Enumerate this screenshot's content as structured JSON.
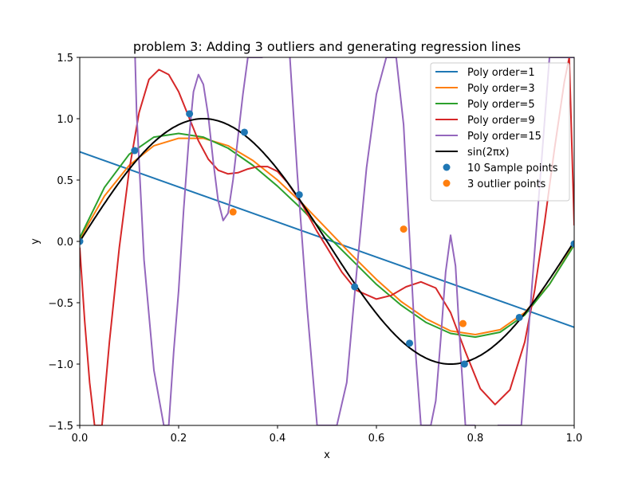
{
  "chart_data": {
    "type": "line",
    "title": "problem 3: Adding 3 outliers and generating regression lines",
    "xlabel": "x",
    "ylabel": "y",
    "xlim": [
      0,
      1
    ],
    "ylim": [
      -1.5,
      1.5
    ],
    "x_ticks": [
      "0.0",
      "0.2",
      "0.4",
      "0.6",
      "0.8",
      "1.0"
    ],
    "y_ticks": [
      "−1.5",
      "−1.0",
      "−0.5",
      "0.0",
      "0.5",
      "1.0",
      "1.5"
    ],
    "grid": false,
    "legend_position": "top-right",
    "series": [
      {
        "name": "Poly order=1",
        "color": "#1f77b4",
        "x": [
          0,
          1
        ],
        "y": [
          0.73,
          -0.7
        ]
      },
      {
        "name": "Poly order=3",
        "color": "#ff7f0e",
        "x": [
          0,
          0.05,
          0.1,
          0.15,
          0.2,
          0.25,
          0.3,
          0.35,
          0.4,
          0.45,
          0.5,
          0.55,
          0.6,
          0.65,
          0.7,
          0.75,
          0.8,
          0.85,
          0.9,
          0.95,
          1.0
        ],
        "y": [
          0.02,
          0.37,
          0.62,
          0.78,
          0.84,
          0.84,
          0.78,
          0.66,
          0.5,
          0.31,
          0.1,
          -0.11,
          -0.31,
          -0.49,
          -0.63,
          -0.73,
          -0.76,
          -0.72,
          -0.58,
          -0.35,
          -0.02
        ]
      },
      {
        "name": "Poly order=5",
        "color": "#2ca02c",
        "x": [
          0,
          0.05,
          0.1,
          0.15,
          0.2,
          0.25,
          0.3,
          0.35,
          0.4,
          0.45,
          0.5,
          0.55,
          0.6,
          0.65,
          0.7,
          0.75,
          0.8,
          0.85,
          0.9,
          0.95,
          1.0
        ],
        "y": [
          0.03,
          0.44,
          0.71,
          0.85,
          0.88,
          0.85,
          0.76,
          0.62,
          0.45,
          0.26,
          0.05,
          -0.15,
          -0.35,
          -0.52,
          -0.66,
          -0.75,
          -0.78,
          -0.74,
          -0.6,
          -0.35,
          -0.03
        ]
      },
      {
        "name": "Poly order=9",
        "color": "#d62728",
        "x": [
          0,
          0.01,
          0.02,
          0.03,
          0.045,
          0.06,
          0.08,
          0.1,
          0.12,
          0.14,
          0.16,
          0.18,
          0.2,
          0.22,
          0.24,
          0.26,
          0.28,
          0.3,
          0.32,
          0.34,
          0.36,
          0.38,
          0.4,
          0.42,
          0.45,
          0.48,
          0.5,
          0.53,
          0.56,
          0.6,
          0.63,
          0.66,
          0.69,
          0.72,
          0.75,
          0.78,
          0.81,
          0.84,
          0.87,
          0.9,
          0.92,
          0.94,
          0.96,
          0.98,
          0.99,
          1.0
        ],
        "y": [
          -0.05,
          -0.65,
          -1.15,
          -1.5,
          -1.5,
          -0.82,
          -0.05,
          0.58,
          1.05,
          1.32,
          1.4,
          1.36,
          1.22,
          1.02,
          0.82,
          0.67,
          0.58,
          0.55,
          0.56,
          0.59,
          0.61,
          0.61,
          0.57,
          0.48,
          0.3,
          0.08,
          -0.05,
          -0.25,
          -0.4,
          -0.47,
          -0.44,
          -0.37,
          -0.33,
          -0.38,
          -0.58,
          -0.9,
          -1.2,
          -1.33,
          -1.21,
          -0.82,
          -0.4,
          0.15,
          0.75,
          1.3,
          1.5,
          0.13
        ]
      },
      {
        "name": "Poly order=15",
        "color": "#9467bd",
        "x": [
          0.112,
          0.115,
          0.13,
          0.15,
          0.17,
          0.18,
          0.19,
          0.2,
          0.21,
          0.22,
          0.23,
          0.24,
          0.25,
          0.26,
          0.27,
          0.28,
          0.29,
          0.3,
          0.31,
          0.32,
          0.33,
          0.34,
          0.35,
          0.36,
          0.37
        ],
        "y": [
          1.5,
          1.05,
          -0.15,
          -1.05,
          -1.5,
          -1.5,
          -0.9,
          -0.4,
          0.25,
          0.8,
          1.22,
          1.36,
          1.28,
          1.02,
          0.65,
          0.33,
          0.17,
          0.23,
          0.5,
          0.85,
          1.2,
          1.5,
          1.5,
          1.5,
          1.5
        ],
        "x2": [
          0.425,
          0.44,
          0.46,
          0.48,
          0.5,
          0.52,
          0.54,
          0.56,
          0.58,
          0.6,
          0.62,
          0.635,
          0.64,
          0.655,
          0.67,
          0.68,
          0.69,
          0.7,
          0.71,
          0.72,
          0.73,
          0.74,
          0.75,
          0.76,
          0.77,
          0.78,
          0.79,
          0.8
        ],
        "y2": [
          1.5,
          0.55,
          -0.55,
          -1.5,
          -1.5,
          -1.5,
          -1.15,
          -0.25,
          0.6,
          1.2,
          1.5,
          1.5,
          1.5,
          0.95,
          -0.2,
          -0.95,
          -1.5,
          -1.5,
          -1.5,
          -1.3,
          -0.8,
          -0.25,
          0.05,
          -0.2,
          -0.9,
          -1.5,
          -1.5,
          -1.5
        ],
        "x3": [
          0.845,
          0.86,
          0.875,
          0.885,
          0.89,
          0.893,
          0.95,
          0.97,
          0.98,
          0.99,
          1.0
        ],
        "y3": [
          -1.5,
          -1.5,
          -1.5,
          -1.5,
          -1.5,
          -1.5,
          1.5,
          1.5,
          1.5,
          1.5,
          1.5
        ]
      },
      {
        "name": "sin(2πx)",
        "color": "#000000",
        "function": "sin(2*pi*x)"
      }
    ],
    "scatter": [
      {
        "name": "10 Sample points",
        "color": "#1f77b4",
        "x": [
          0.0,
          0.111,
          0.222,
          0.333,
          0.444,
          0.556,
          0.667,
          0.778,
          0.889,
          1.0
        ],
        "y": [
          0.0,
          0.74,
          1.04,
          0.89,
          0.38,
          -0.37,
          -0.83,
          -1.0,
          -0.62,
          -0.02
        ]
      },
      {
        "name": "3 outlier points",
        "color": "#ff7f0e",
        "x": [
          0.31,
          0.655,
          0.775
        ],
        "y": [
          0.24,
          0.1,
          -0.67
        ]
      }
    ]
  }
}
